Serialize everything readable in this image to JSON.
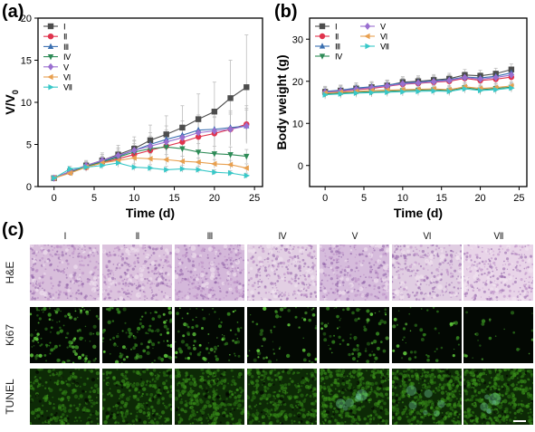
{
  "panels": {
    "a": "(a)",
    "b": "(b)",
    "c": "(c)"
  },
  "series_names": [
    "I",
    "II",
    "III",
    "IV",
    "V",
    "VI",
    "VII"
  ],
  "series_display": [
    "Ⅰ",
    "Ⅱ",
    "Ⅲ",
    "Ⅳ",
    "Ⅴ",
    "Ⅵ",
    "Ⅶ"
  ],
  "series_colors": [
    "#4d4d4d",
    "#e0334d",
    "#3a6fb0",
    "#2e8b57",
    "#9a6fd0",
    "#e8a050",
    "#38c8c8"
  ],
  "chart_data": [
    {
      "type": "line",
      "panel": "(a)",
      "xlabel": "Time (d)",
      "ylabel": "V/V0",
      "xlim": [
        -2,
        26
      ],
      "ylim": [
        0,
        20
      ],
      "xticks": [
        0,
        5,
        10,
        15,
        20,
        25
      ],
      "yticks": [
        0,
        5,
        10,
        15,
        20
      ],
      "legend": "top-left",
      "x": [
        0,
        2,
        4,
        6,
        8,
        10,
        12,
        14,
        16,
        18,
        20,
        22,
        24
      ],
      "series": [
        {
          "name": "I",
          "values": [
            1.0,
            1.8,
            2.5,
            3.1,
            3.8,
            4.5,
            5.5,
            6.2,
            7.0,
            8.0,
            8.9,
            10.5,
            11.8
          ],
          "err": [
            0.1,
            0.4,
            0.6,
            0.9,
            1.1,
            1.4,
            1.8,
            2.2,
            2.6,
            3.0,
            3.5,
            4.5,
            6.2
          ]
        },
        {
          "name": "II",
          "values": [
            1.0,
            1.7,
            2.3,
            2.8,
            3.3,
            3.8,
            4.3,
            4.8,
            5.3,
            5.9,
            6.3,
            6.8,
            7.4
          ],
          "err": [
            0.1,
            0.3,
            0.5,
            0.7,
            0.9,
            1.1,
            1.3,
            1.5,
            1.6,
            1.8,
            1.9,
            2.0,
            2.2
          ]
        },
        {
          "name": "III",
          "values": [
            1.0,
            1.8,
            2.4,
            3.0,
            3.6,
            4.3,
            5.0,
            5.6,
            6.1,
            6.7,
            6.8,
            7.0,
            7.2
          ],
          "err": [
            0.1,
            0.3,
            0.5,
            0.8,
            1.0,
            1.2,
            1.4,
            1.6,
            1.7,
            1.8,
            1.9,
            2.0,
            2.1
          ]
        },
        {
          "name": "IV",
          "values": [
            1.0,
            1.7,
            2.4,
            2.9,
            3.5,
            4.1,
            4.5,
            4.7,
            4.5,
            4.1,
            3.9,
            3.8,
            3.6
          ],
          "err": [
            0.1,
            0.3,
            0.5,
            0.7,
            0.9,
            1.0,
            1.1,
            1.1,
            1.0,
            1.0,
            0.9,
            0.9,
            0.8
          ]
        },
        {
          "name": "V",
          "values": [
            1.0,
            1.8,
            2.5,
            3.1,
            3.7,
            4.3,
            4.8,
            5.3,
            5.8,
            6.4,
            6.6,
            6.8,
            7.2
          ],
          "err": [
            0.1,
            0.3,
            0.5,
            0.7,
            0.9,
            1.1,
            1.2,
            1.4,
            1.5,
            1.6,
            1.7,
            1.8,
            1.9
          ]
        },
        {
          "name": "VI",
          "values": [
            1.0,
            1.6,
            2.3,
            2.8,
            3.1,
            3.4,
            3.3,
            3.2,
            3.0,
            2.9,
            2.7,
            2.6,
            2.2
          ],
          "err": [
            0.1,
            0.3,
            0.4,
            0.5,
            0.6,
            0.6,
            0.6,
            0.6,
            0.6,
            0.5,
            0.5,
            0.5,
            0.5
          ]
        },
        {
          "name": "VII",
          "values": [
            1.0,
            2.1,
            2.3,
            2.5,
            2.8,
            2.3,
            2.2,
            2.0,
            2.1,
            2.0,
            1.7,
            1.6,
            1.3
          ],
          "err": [
            0.1,
            0.3,
            0.4,
            0.4,
            0.5,
            0.4,
            0.4,
            0.4,
            0.4,
            0.4,
            0.3,
            0.3,
            0.3
          ]
        }
      ]
    },
    {
      "type": "line",
      "panel": "(b)",
      "xlabel": "Time (d)",
      "ylabel": "Body weight (g)",
      "xlim": [
        -2,
        26
      ],
      "ylim": [
        -5,
        35
      ],
      "xticks": [
        0,
        5,
        10,
        15,
        20,
        25
      ],
      "yticks": [
        0,
        10,
        20,
        30
      ],
      "legend": "top-left",
      "x": [
        0,
        2,
        4,
        6,
        8,
        10,
        12,
        14,
        16,
        18,
        20,
        22,
        24
      ],
      "series": [
        {
          "name": "I",
          "values": [
            17.5,
            17.8,
            18.3,
            18.6,
            19.0,
            19.8,
            20.0,
            20.3,
            20.6,
            21.5,
            21.3,
            21.8,
            22.8
          ],
          "err": [
            1.3,
            1.3,
            1.3,
            1.3,
            1.3,
            1.3,
            1.3,
            1.3,
            1.3,
            1.3,
            1.3,
            1.3,
            1.3
          ]
        },
        {
          "name": "II",
          "values": [
            17.3,
            17.6,
            18.0,
            18.3,
            18.8,
            19.3,
            19.5,
            19.8,
            20.0,
            20.7,
            20.2,
            20.5,
            21.0
          ],
          "err": [
            1.2,
            1.2,
            1.2,
            1.2,
            1.2,
            1.2,
            1.2,
            1.2,
            1.2,
            1.2,
            1.2,
            1.2,
            1.2
          ]
        },
        {
          "name": "III",
          "values": [
            17.6,
            17.9,
            18.4,
            18.7,
            19.1,
            19.6,
            19.8,
            20.1,
            20.4,
            21.0,
            20.8,
            21.2,
            22.0
          ],
          "err": [
            1.2,
            1.2,
            1.2,
            1.2,
            1.2,
            1.2,
            1.2,
            1.2,
            1.2,
            1.2,
            1.2,
            1.2,
            1.2
          ]
        },
        {
          "name": "IV",
          "values": [
            17.0,
            17.2,
            17.4,
            17.5,
            17.6,
            17.8,
            17.9,
            18.0,
            17.8,
            18.5,
            18.0,
            18.3,
            18.6
          ],
          "err": [
            1.0,
            1.0,
            1.0,
            1.0,
            1.0,
            1.0,
            1.0,
            1.0,
            1.0,
            1.0,
            1.0,
            1.0,
            1.0
          ]
        },
        {
          "name": "V",
          "values": [
            17.4,
            17.7,
            18.1,
            18.5,
            18.9,
            19.4,
            19.6,
            19.9,
            20.2,
            20.9,
            20.5,
            20.9,
            21.5
          ],
          "err": [
            1.2,
            1.2,
            1.2,
            1.2,
            1.2,
            1.2,
            1.2,
            1.2,
            1.2,
            1.2,
            1.2,
            1.2,
            1.2
          ]
        },
        {
          "name": "VI",
          "values": [
            17.2,
            17.4,
            17.6,
            17.8,
            17.9,
            18.0,
            18.1,
            18.2,
            18.0,
            18.7,
            18.3,
            18.5,
            18.9
          ],
          "err": [
            1.0,
            1.0,
            1.0,
            1.0,
            1.0,
            1.0,
            1.0,
            1.0,
            1.0,
            1.0,
            1.0,
            1.0,
            1.0
          ]
        },
        {
          "name": "VII",
          "values": [
            16.8,
            17.0,
            17.2,
            17.3,
            17.4,
            17.5,
            17.6,
            17.7,
            17.6,
            18.2,
            17.8,
            18.0,
            18.4
          ],
          "err": [
            1.0,
            1.0,
            1.0,
            1.0,
            1.0,
            1.0,
            1.0,
            1.0,
            1.0,
            1.0,
            1.0,
            1.0,
            1.0
          ]
        }
      ]
    }
  ],
  "grid": {
    "columns": [
      "Ⅰ",
      "Ⅱ",
      "Ⅲ",
      "Ⅳ",
      "Ⅴ",
      "Ⅵ",
      "Ⅶ"
    ],
    "rows": [
      "H&E",
      "Ki67",
      "TUNEL"
    ],
    "he_colors": [
      "#d8bedb",
      "#dcc3de",
      "#d4b8da",
      "#e2cfe3",
      "#d6bcdc",
      "#e0cde2",
      "#e8d4e8"
    ],
    "ki67_intensity": [
      0.8,
      0.65,
      0.55,
      0.35,
      0.5,
      0.3,
      0.15
    ],
    "tunel_intensity": [
      0.45,
      0.5,
      0.6,
      0.6,
      0.7,
      0.75,
      0.8
    ]
  }
}
